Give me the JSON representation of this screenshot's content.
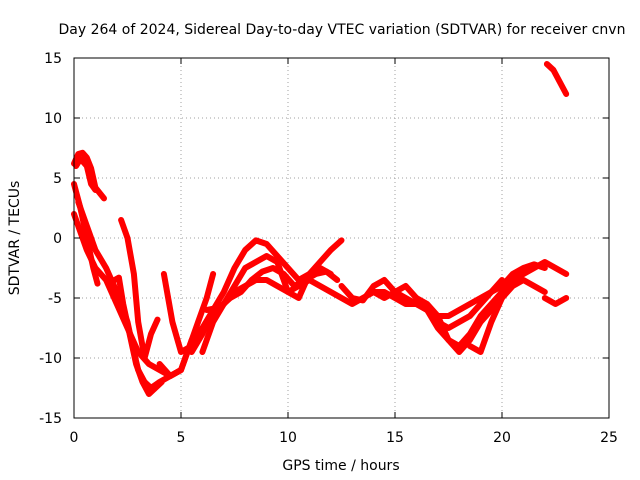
{
  "chart_data": {
    "type": "scatter",
    "title": "Day 264 of 2024, Sidereal Day-to-day VTEC variation (SDTVAR) for receiver cnvn",
    "xlabel": "GPS time / hours",
    "ylabel": "SDTVAR / TECUs",
    "xlim": [
      0,
      25
    ],
    "ylim": [
      -15,
      15
    ],
    "xticks": [
      0,
      5,
      10,
      15,
      20,
      25
    ],
    "yticks": [
      -15,
      -10,
      -5,
      0,
      5,
      10,
      15
    ],
    "xtick_labels": [
      "0",
      "5",
      "10",
      "15",
      "20",
      "25"
    ],
    "ytick_labels": [
      "-15",
      "-10",
      "-5",
      "0",
      "5",
      "10",
      "15"
    ],
    "grid": true,
    "marker": "+",
    "color": "#ff0000",
    "series": [
      {
        "name": "s1",
        "x": [
          0.0,
          0.2,
          0.4,
          0.6,
          0.8,
          1.0,
          1.4
        ],
        "y": [
          6.2,
          7.0,
          7.1,
          6.7,
          5.8,
          4.2,
          3.3
        ]
      },
      {
        "name": "s2",
        "x": [
          0.1,
          0.3,
          0.6,
          0.8,
          1.0
        ],
        "y": [
          6.0,
          6.6,
          6.0,
          4.5,
          4.0
        ]
      },
      {
        "name": "s3",
        "x": [
          0.0,
          0.3,
          0.6,
          0.9,
          1.1
        ],
        "y": [
          4.5,
          2.5,
          0.0,
          -2.5,
          -3.8
        ]
      },
      {
        "name": "s4",
        "x": [
          0.0,
          0.3,
          0.6,
          1.0,
          1.5,
          2.0,
          2.5,
          3.0,
          3.5,
          4.0,
          4.5,
          5.0,
          5.4,
          5.8,
          6.2,
          6.5
        ],
        "y": [
          2.0,
          0.5,
          -1.0,
          -2.5,
          -3.5,
          -5.5,
          -7.5,
          -9.5,
          -10.5,
          -11.0,
          -11.5,
          -11.0,
          -9.0,
          -7.0,
          -5.0,
          -3.0
        ]
      },
      {
        "name": "s5",
        "x": [
          0.2,
          0.5,
          1.0,
          1.5,
          2.0,
          2.5,
          2.8,
          3.0,
          3.3,
          3.6,
          4.0,
          4.5,
          5.0
        ],
        "y": [
          3.0,
          1.5,
          -1.0,
          -2.5,
          -4.5,
          -7.0,
          -9.5,
          -11.0,
          -12.0,
          -12.5,
          -12.0,
          -11.5,
          -11.0
        ]
      },
      {
        "name": "s6",
        "x": [
          2.2,
          2.5,
          2.8,
          3.0,
          3.3,
          3.6,
          3.9
        ],
        "y": [
          1.5,
          0.0,
          -3.0,
          -7.0,
          -10.0,
          -8.0,
          -6.8
        ]
      },
      {
        "name": "s7",
        "x": [
          1.9,
          2.1,
          2.3,
          2.6,
          2.9,
          3.2,
          3.5,
          3.8,
          4.1
        ],
        "y": [
          -3.5,
          -3.3,
          -5.5,
          -8.0,
          -10.5,
          -12.0,
          -13.0,
          -12.5,
          -12.0
        ]
      },
      {
        "name": "s8",
        "x": [
          4.2,
          4.6,
          5.0,
          5.5,
          6.0,
          6.5
        ],
        "y": [
          -3.0,
          -7.0,
          -9.5,
          -9.0,
          -7.5,
          -6.0
        ]
      },
      {
        "name": "s9",
        "x": [
          4.0,
          4.5,
          5.0,
          5.5,
          6.0,
          6.5,
          7.0,
          7.5,
          8.0,
          8.5,
          9.0,
          9.5,
          10.0,
          10.5,
          11.0,
          11.5,
          12.0,
          12.5,
          13.0,
          13.5,
          14.0,
          14.5,
          15.0,
          15.5,
          16.0,
          16.5,
          17.0,
          17.5,
          18.0,
          18.5,
          19.0,
          19.5,
          20.0
        ],
        "y": [
          -10.5,
          -11.5,
          -11.0,
          -8.5,
          -7.5,
          -6.5,
          -5.5,
          -4.5,
          -4.0,
          -3.5,
          -3.5,
          -4.0,
          -4.5,
          -4.0,
          -3.5,
          -4.0,
          -4.5,
          -5.0,
          -5.5,
          -5.0,
          -4.5,
          -4.5,
          -5.0,
          -5.5,
          -5.5,
          -6.0,
          -7.0,
          -7.5,
          -7.0,
          -6.5,
          -5.5,
          -4.5,
          -3.5
        ]
      },
      {
        "name": "s10",
        "x": [
          5.5,
          6.0,
          6.5,
          7.0,
          7.5,
          8.0,
          8.5,
          9.0,
          9.5,
          10.0,
          10.5,
          11.0,
          11.5,
          12.0,
          12.5
        ],
        "y": [
          -9.5,
          -8.0,
          -6.0,
          -4.5,
          -2.5,
          -1.0,
          -0.2,
          -0.5,
          -1.5,
          -2.5,
          -3.5,
          -3.0,
          -2.0,
          -1.0,
          -0.2
        ]
      },
      {
        "name": "s11",
        "x": [
          6.0,
          6.5,
          7.0,
          7.5,
          8.0,
          8.5,
          9.0,
          9.5,
          10.0,
          10.5,
          11.0,
          11.5,
          12.0
        ],
        "y": [
          -9.5,
          -7.0,
          -5.5,
          -4.0,
          -2.5,
          -2.0,
          -1.5,
          -2.0,
          -4.5,
          -5.0,
          -3.0,
          -2.5,
          -3.0
        ]
      },
      {
        "name": "s12",
        "x": [
          6.2,
          6.8,
          7.3,
          7.8,
          8.3,
          8.8,
          9.3,
          9.8,
          10.3,
          10.8,
          11.3,
          11.8,
          12.3
        ],
        "y": [
          -6.0,
          -5.8,
          -5.0,
          -4.5,
          -3.5,
          -2.8,
          -2.5,
          -3.0,
          -4.0,
          -3.5,
          -3.0,
          -2.8,
          -3.5
        ]
      },
      {
        "name": "s13",
        "x": [
          12.5,
          13.0,
          13.5,
          14.0,
          14.5,
          15.0,
          15.5,
          16.0,
          16.5,
          17.0,
          17.5,
          18.0,
          18.5,
          19.0,
          19.5,
          20.0,
          20.5,
          21.0,
          21.5,
          22.0
        ],
        "y": [
          -4.0,
          -5.0,
          -5.2,
          -4.0,
          -3.5,
          -4.5,
          -5.0,
          -5.5,
          -6.0,
          -6.5,
          -6.5,
          -6.0,
          -5.5,
          -5.0,
          -4.5,
          -4.0,
          -3.0,
          -2.5,
          -2.2,
          -2.5
        ]
      },
      {
        "name": "s14",
        "x": [
          14.0,
          14.5,
          15.0,
          15.5,
          16.0,
          16.5,
          17.0,
          17.5,
          18.0,
          18.5,
          19.0,
          19.5,
          20.0
        ],
        "y": [
          -4.5,
          -5.0,
          -4.5,
          -4.0,
          -5.0,
          -6.0,
          -7.5,
          -8.5,
          -9.0,
          -8.0,
          -6.5,
          -5.5,
          -4.5
        ]
      },
      {
        "name": "s15",
        "x": [
          16.0,
          16.5,
          17.0,
          17.5,
          18.0,
          18.5,
          19.0,
          19.5,
          20.0,
          20.5,
          21.0,
          21.5,
          22.0,
          22.5,
          23.0
        ],
        "y": [
          -5.0,
          -5.5,
          -6.5,
          -8.5,
          -9.5,
          -8.5,
          -7.0,
          -6.0,
          -4.5,
          -3.5,
          -3.0,
          -2.5,
          -2.0,
          -2.5,
          -3.0
        ]
      },
      {
        "name": "s16",
        "x": [
          18.5,
          19.0,
          19.5,
          20.0,
          20.5,
          21.0,
          21.5,
          22.0
        ],
        "y": [
          -9.0,
          -9.5,
          -7.0,
          -5.0,
          -4.0,
          -3.5,
          -4.0,
          -4.5
        ]
      },
      {
        "name": "s17",
        "x": [
          22.0,
          22.5,
          23.0
        ],
        "y": [
          -5.0,
          -5.5,
          -5.0
        ]
      },
      {
        "name": "s18",
        "x": [
          22.1,
          22.4,
          22.7,
          23.0
        ],
        "y": [
          14.5,
          14.0,
          13.0,
          12.0
        ]
      }
    ]
  }
}
